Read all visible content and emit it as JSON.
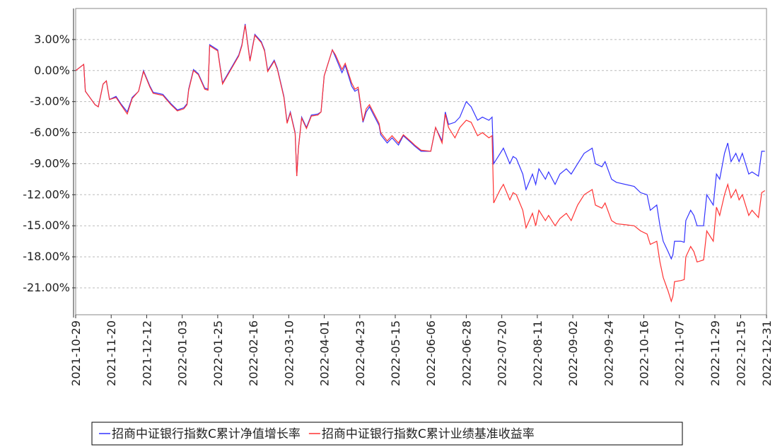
{
  "chart_data": {
    "type": "line",
    "x": [
      "2021-10-29",
      "2021-11-03",
      "2021-11-04",
      "2021-11-10",
      "2021-11-12",
      "2021-11-15",
      "2021-11-17",
      "2021-11-19",
      "2021-11-23",
      "2021-11-26",
      "2021-11-30",
      "2021-12-03",
      "2021-12-07",
      "2021-12-10",
      "2021-12-14",
      "2021-12-16",
      "2021-12-22",
      "2021-12-27",
      "2021-12-31",
      "2022-01-04",
      "2022-01-06",
      "2022-01-07",
      "2022-01-10",
      "2022-01-13",
      "2022-01-17",
      "2022-01-19",
      "2022-01-20",
      "2022-01-25",
      "2022-01-28",
      "2022-02-07",
      "2022-02-09",
      "2022-02-11",
      "2022-02-14",
      "2022-02-17",
      "2022-02-21",
      "2022-02-23",
      "2022-02-25",
      "2022-03-01",
      "2022-03-03",
      "2022-03-07",
      "2022-03-09",
      "2022-03-11",
      "2022-03-14",
      "2022-03-15",
      "2022-03-16",
      "2022-03-18",
      "2022-03-21",
      "2022-03-24",
      "2022-03-28",
      "2022-03-30",
      "2022-04-01",
      "2022-04-06",
      "2022-04-08",
      "2022-04-12",
      "2022-04-14",
      "2022-04-18",
      "2022-04-20",
      "2022-04-22",
      "2022-04-25",
      "2022-04-27",
      "2022-04-29",
      "2022-05-05",
      "2022-05-06",
      "2022-05-10",
      "2022-05-13",
      "2022-05-17",
      "2022-05-20",
      "2022-05-25",
      "2022-05-27",
      "2022-05-31",
      "2022-06-06",
      "2022-06-09",
      "2022-06-13",
      "2022-06-15",
      "2022-06-17",
      "2022-06-21",
      "2022-06-24",
      "2022-06-28",
      "2022-07-01",
      "2022-07-05",
      "2022-07-08",
      "2022-07-12",
      "2022-07-14",
      "2022-07-15",
      "2022-07-19",
      "2022-07-21",
      "2022-07-25",
      "2022-07-27",
      "2022-07-29",
      "2022-08-02",
      "2022-08-04",
      "2022-08-08",
      "2022-08-10",
      "2022-08-12",
      "2022-08-16",
      "2022-08-18",
      "2022-08-22",
      "2022-08-25",
      "2022-08-29",
      "2022-09-01",
      "2022-09-05",
      "2022-09-09",
      "2022-09-14",
      "2022-09-16",
      "2022-09-20",
      "2022-09-22",
      "2022-09-26",
      "2022-09-29",
      "2022-10-10",
      "2022-10-14",
      "2022-10-18",
      "2022-10-20",
      "2022-10-24",
      "2022-10-26",
      "2022-10-28",
      "2022-10-31",
      "2022-11-02",
      "2022-11-03",
      "2022-11-04",
      "2022-11-08",
      "2022-11-10",
      "2022-11-11",
      "2022-11-14",
      "2022-11-16",
      "2022-11-18",
      "2022-11-22",
      "2022-11-24",
      "2022-11-28",
      "2022-11-30",
      "2022-12-02",
      "2022-12-05",
      "2022-12-07",
      "2022-12-09",
      "2022-12-12",
      "2022-12-14",
      "2022-12-16",
      "2022-12-20",
      "2022-12-22",
      "2022-12-26",
      "2022-12-28",
      "2022-12-30"
    ],
    "series": [
      {
        "name": "招商中证银行指数C累计净值增长率",
        "color": "#3333ff",
        "values": [
          0,
          0.6,
          -2.0,
          -3.3,
          -3.5,
          -1.3,
          -1.0,
          -2.8,
          -2.5,
          -3.2,
          -4.0,
          -2.6,
          -2.0,
          0.0,
          -1.5,
          -2.1,
          -2.3,
          -3.2,
          -3.8,
          -3.6,
          -3.2,
          -1.8,
          0.1,
          -0.3,
          -1.7,
          -1.8,
          2.5,
          2.0,
          -1.2,
          1.5,
          2.5,
          4.5,
          1.0,
          3.5,
          2.8,
          2.0,
          0.0,
          1.0,
          0.2,
          -2.5,
          -5.0,
          -4.0,
          -6.0,
          -10.2,
          -7.5,
          -4.5,
          -5.5,
          -4.3,
          -4.2,
          -4.0,
          -0.5,
          2.0,
          1.3,
          -0.2,
          0.5,
          -1.5,
          -2.0,
          -1.8,
          -5.0,
          -4.0,
          -3.5,
          -5.3,
          -6.2,
          -7.0,
          -6.5,
          -7.2,
          -6.3,
          -7.0,
          -7.3,
          -7.8,
          -7.8,
          -5.5,
          -6.8,
          -4.0,
          -5.2,
          -5.0,
          -4.5,
          -3.0,
          -3.5,
          -4.8,
          -4.5,
          -4.8,
          -4.5,
          -9.0,
          -8.0,
          -7.5,
          -9.0,
          -8.3,
          -8.5,
          -10.0,
          -11.5,
          -10.0,
          -11.0,
          -9.5,
          -10.5,
          -9.8,
          -11.0,
          -10.0,
          -9.5,
          -10.0,
          -9.0,
          -8.0,
          -7.5,
          -9.0,
          -9.3,
          -8.8,
          -10.5,
          -10.8,
          -11.2,
          -11.8,
          -12.0,
          -13.5,
          -13.0,
          -15.0,
          -16.5,
          -17.5,
          -18.2,
          -17.8,
          -16.5,
          -16.5,
          -16.6,
          -14.5,
          -13.5,
          -14.0,
          -15.0,
          -15.0,
          -12.0,
          -13.0,
          -10.0,
          -10.5,
          -8.0,
          -7.0,
          -8.8,
          -8.0,
          -8.8,
          -8.0,
          -10.0,
          -9.8,
          -10.2,
          -7.8,
          -7.8
        ]
      },
      {
        "name": "招商中证银行指数C累计业绩基准收益率",
        "color": "#ff3333",
        "values": [
          0,
          0.6,
          -2.0,
          -3.3,
          -3.5,
          -1.3,
          -1.0,
          -2.8,
          -2.6,
          -3.3,
          -4.2,
          -2.7,
          -2.0,
          -0.1,
          -1.6,
          -2.2,
          -2.4,
          -3.3,
          -3.9,
          -3.7,
          -3.3,
          -1.9,
          0.0,
          -0.4,
          -1.8,
          -1.9,
          2.4,
          1.9,
          -1.3,
          1.4,
          2.4,
          4.4,
          0.9,
          3.4,
          2.7,
          1.9,
          -0.1,
          0.9,
          0.1,
          -2.6,
          -5.1,
          -4.1,
          -6.1,
          -10.2,
          -7.5,
          -4.6,
          -5.6,
          -4.4,
          -4.3,
          -4.0,
          -0.5,
          2.0,
          1.5,
          0.1,
          0.7,
          -1.2,
          -1.8,
          -1.6,
          -4.9,
          -3.7,
          -3.3,
          -5.1,
          -6.0,
          -6.8,
          -6.3,
          -7.0,
          -6.2,
          -6.9,
          -7.2,
          -7.7,
          -7.8,
          -5.5,
          -7.0,
          -4.2,
          -5.5,
          -6.5,
          -5.5,
          -4.8,
          -5.0,
          -6.3,
          -6.0,
          -6.5,
          -6.3,
          -12.8,
          -11.5,
          -11.0,
          -12.5,
          -11.8,
          -12.0,
          -13.5,
          -15.2,
          -13.8,
          -15.0,
          -13.5,
          -14.5,
          -14.0,
          -15.0,
          -14.3,
          -13.8,
          -14.5,
          -13.0,
          -12.0,
          -11.5,
          -13.0,
          -13.3,
          -12.8,
          -14.5,
          -14.8,
          -15.0,
          -15.5,
          -15.8,
          -16.8,
          -16.5,
          -18.5,
          -20.0,
          -21.3,
          -22.3,
          -21.8,
          -20.4,
          -20.3,
          -20.2,
          -18.0,
          -17.0,
          -17.5,
          -18.5,
          -18.3,
          -15.5,
          -16.5,
          -13.2,
          -14.0,
          -12.0,
          -11.0,
          -12.3,
          -11.5,
          -12.5,
          -12.0,
          -14.0,
          -13.5,
          -14.2,
          -11.8,
          -11.6
        ]
      }
    ],
    "xlim": [
      "2021-10-29",
      "2022-12-31"
    ],
    "xticks": [
      "2021-10-29",
      "2021-11-20",
      "2021-12-12",
      "2022-01-03",
      "2022-01-25",
      "2022-02-16",
      "2022-03-10",
      "2022-04-01",
      "2022-04-23",
      "2022-05-15",
      "2022-06-06",
      "2022-06-28",
      "2022-07-20",
      "2022-08-11",
      "2022-09-02",
      "2022-09-24",
      "2022-10-16",
      "2022-11-07",
      "2022-11-29",
      "2022-12-15",
      "2022-12-31"
    ],
    "ylim": [
      -23.6,
      6.0
    ],
    "yticks": [
      {
        "value": 3,
        "label": "3.00%"
      },
      {
        "value": 0,
        "label": "0.00%"
      },
      {
        "value": -3,
        "label": "-3.00%"
      },
      {
        "value": -6,
        "label": "-6.00%"
      },
      {
        "value": -9,
        "label": "-9.00%"
      },
      {
        "value": -12,
        "label": "-12.00%"
      },
      {
        "value": -15,
        "label": "-15.00%"
      },
      {
        "value": -18,
        "label": "-18.00%"
      },
      {
        "value": -21,
        "label": "-21.00%"
      }
    ],
    "grid": true
  }
}
